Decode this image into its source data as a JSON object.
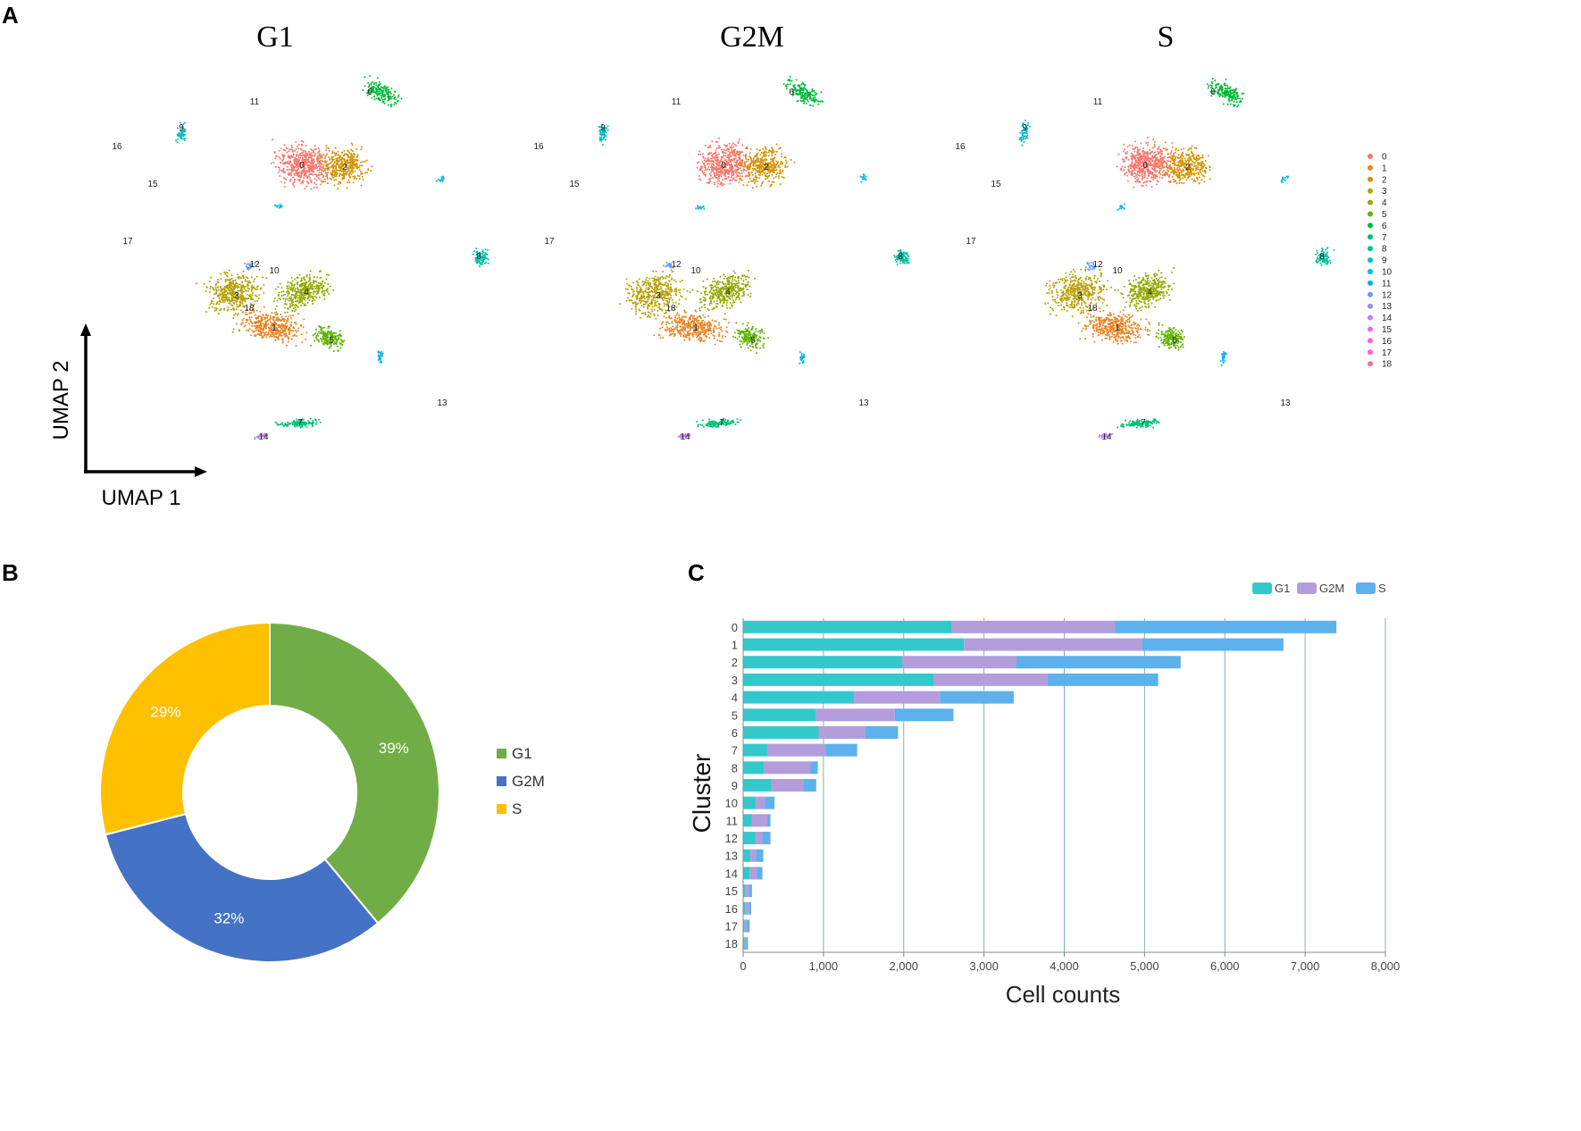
{
  "panel_labels": {
    "a": "A",
    "b": "B",
    "c": "C"
  },
  "chart_data": [
    {
      "panel": "A",
      "type": "scatter",
      "titles": [
        "G1",
        "G2M",
        "S"
      ],
      "xlabel": "UMAP 1",
      "ylabel": "UMAP 2",
      "legend_labels": [
        "0",
        "1",
        "2",
        "3",
        "4",
        "5",
        "6",
        "7",
        "8",
        "9",
        "10",
        "11",
        "12",
        "13",
        "14",
        "15",
        "16",
        "17",
        "18"
      ],
      "cluster_colors": [
        "#F8766D",
        "#E88526",
        "#D39200",
        "#B79F00",
        "#93AA00",
        "#5EB300",
        "#00BA38",
        "#00BF74",
        "#00C19F",
        "#00BFC4",
        "#00B9E3",
        "#00ADFA",
        "#619CFF",
        "#9590FF",
        "#C77CFF",
        "#E76BF3",
        "#FA62DB",
        "#FF62BC",
        "#FF6C91"
      ]
    },
    {
      "panel": "B",
      "type": "pie",
      "labels": [
        "G1",
        "G2M",
        "S"
      ],
      "values": [
        39,
        32,
        29
      ],
      "value_labels": [
        "39%",
        "32%",
        "29%"
      ],
      "colors": [
        "#70AD47",
        "#4472C4",
        "#FFC000"
      ]
    },
    {
      "panel": "C",
      "type": "bar",
      "orientation": "horizontal",
      "stacked": true,
      "categories": [
        "0",
        "1",
        "2",
        "3",
        "4",
        "5",
        "6",
        "7",
        "8",
        "9",
        "10",
        "11",
        "12",
        "13",
        "14",
        "15",
        "16",
        "17",
        "18"
      ],
      "series": [
        {
          "name": "G1",
          "color": "#33C9CC",
          "values": [
            2600,
            2750,
            1980,
            2370,
            1380,
            910,
            940,
            300,
            260,
            350,
            160,
            110,
            150,
            90,
            80,
            30,
            30,
            20,
            20
          ]
        },
        {
          "name": "G2M",
          "color": "#B39DDB",
          "values": [
            2030,
            2220,
            1420,
            1420,
            1070,
            980,
            580,
            730,
            580,
            400,
            110,
            190,
            90,
            70,
            90,
            40,
            40,
            30,
            20
          ]
        },
        {
          "name": "S",
          "color": "#5DB1EC",
          "values": [
            2760,
            1760,
            2050,
            1380,
            920,
            730,
            410,
            390,
            90,
            160,
            120,
            40,
            100,
            90,
            70,
            40,
            30,
            30,
            20
          ]
        }
      ],
      "xlabel": "Cell counts",
      "ylabel": "Cluster",
      "xlim": [
        0,
        8000
      ],
      "xticks": [
        0,
        1000,
        2000,
        3000,
        4000,
        5000,
        6000,
        7000,
        8000
      ],
      "xtick_labels": [
        "0",
        "1,000",
        "2,000",
        "3,000",
        "4,000",
        "5,000",
        "6,000",
        "7,000",
        "8,000"
      ],
      "legend_position": "top-right",
      "grid": true
    }
  ]
}
